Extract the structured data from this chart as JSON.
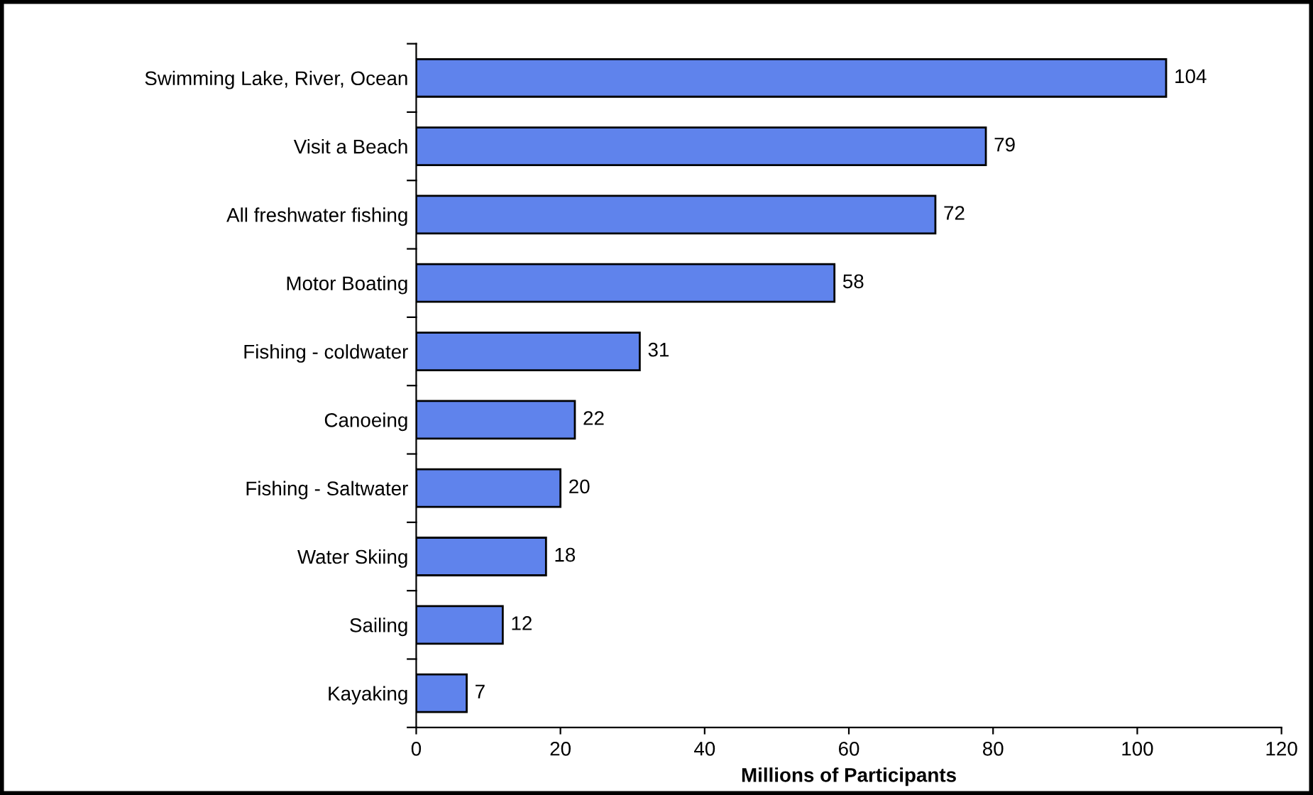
{
  "chart_data": {
    "type": "bar",
    "orientation": "horizontal",
    "xlabel": "Millions of Participants",
    "categories": [
      "Swimming Lake, River, Ocean",
      "Visit a Beach",
      "All freshwater fishing",
      "Motor Boating",
      "Fishing - coldwater",
      "Canoeing",
      "Fishing - Saltwater",
      "Water Skiing",
      "Sailing",
      "Kayaking"
    ],
    "values": [
      104,
      79,
      72,
      58,
      31,
      22,
      20,
      18,
      12,
      7
    ],
    "color": "#5f83ec",
    "xlim": [
      0,
      120
    ],
    "xticks": [
      0,
      20,
      40,
      60,
      80,
      100,
      120
    ],
    "grid": false,
    "data_labels": true
  }
}
